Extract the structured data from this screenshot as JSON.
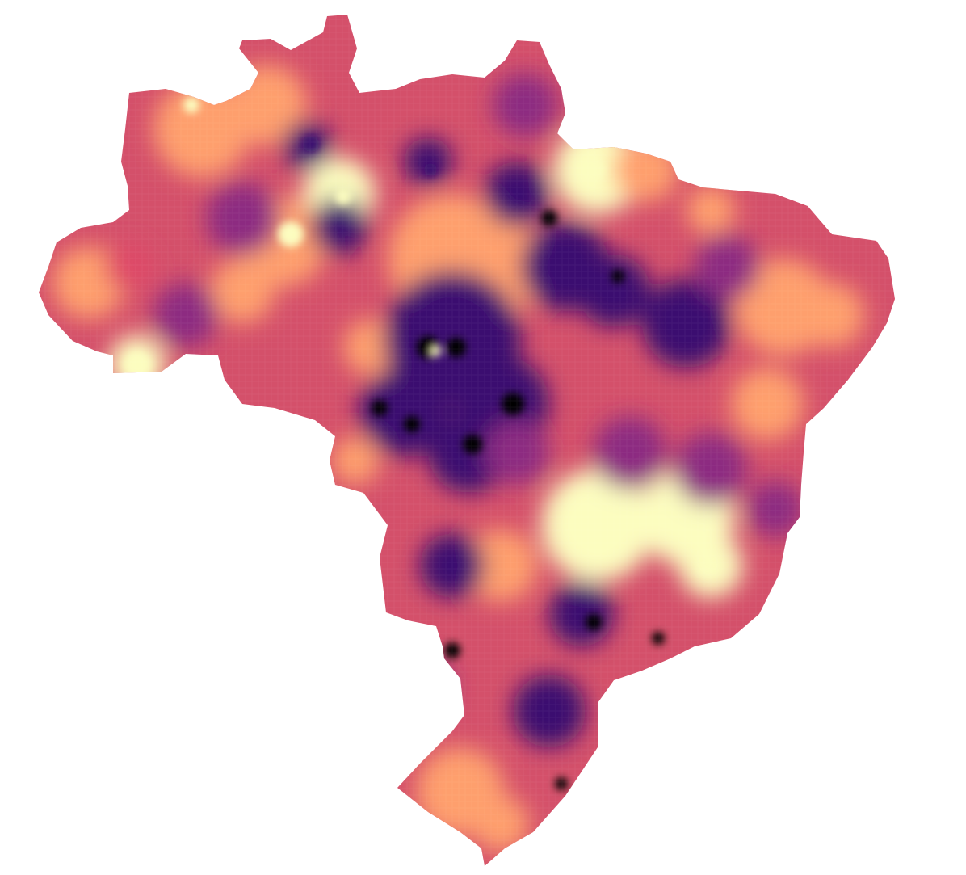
{
  "map": {
    "region": "Brazil",
    "style": "choropleth heatmap",
    "colormap": "magma",
    "palette": [
      "#000004",
      "#3b0f70",
      "#8c2981",
      "#de4968",
      "#fe9f6d",
      "#fcfdbf"
    ],
    "background": "#ffffff"
  }
}
